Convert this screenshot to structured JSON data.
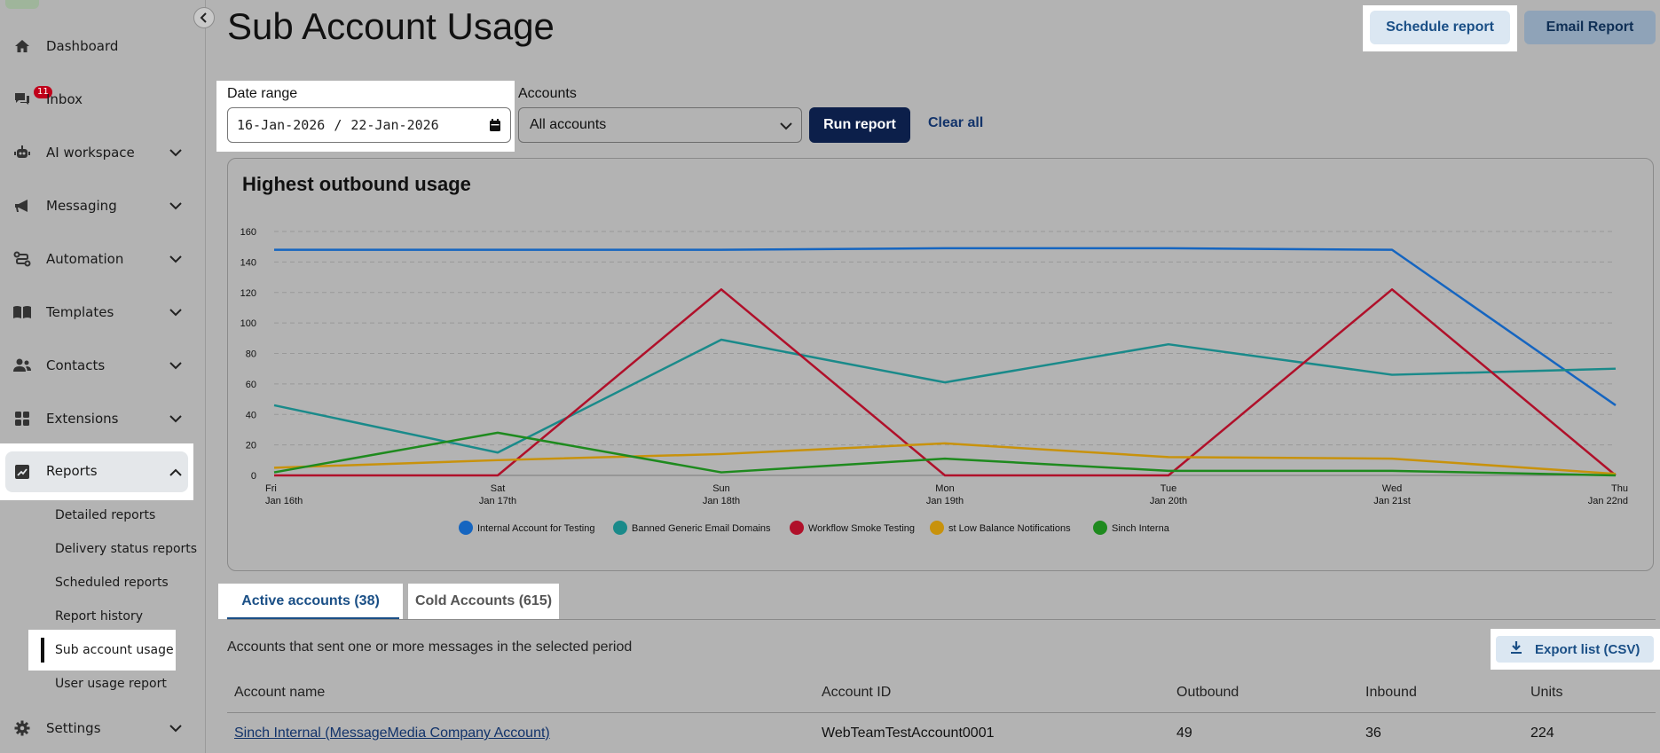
{
  "sidebar": {
    "items": [
      {
        "label": "Dashboard",
        "icon": "home-icon",
        "chevron": false
      },
      {
        "label": "Inbox",
        "icon": "chat-icon",
        "chevron": false,
        "badge": "11"
      },
      {
        "label": "AI workspace",
        "icon": "robot-icon",
        "chevron": true
      },
      {
        "label": "Messaging",
        "icon": "megaphone-icon",
        "chevron": true
      },
      {
        "label": "Automation",
        "icon": "flow-icon",
        "chevron": true
      },
      {
        "label": "Templates",
        "icon": "book-icon",
        "chevron": true
      },
      {
        "label": "Contacts",
        "icon": "people-icon",
        "chevron": true
      },
      {
        "label": "Extensions",
        "icon": "grid-icon",
        "chevron": true
      },
      {
        "label": "Reports",
        "icon": "chart-icon",
        "chevron": true,
        "expanded": true
      },
      {
        "label": "Settings",
        "icon": "gear-icon",
        "chevron": true
      }
    ],
    "report_subitems": [
      "Detailed reports",
      "Delivery status reports",
      "Scheduled reports",
      "Report history",
      "Sub account usage",
      "User usage report"
    ],
    "active_subitem": "Sub account usage"
  },
  "header": {
    "title": "Sub Account Usage",
    "schedule_label": "Schedule report",
    "email_label": "Email Report"
  },
  "filters": {
    "date_range_label": "Date range",
    "date_start": "16-Jan-2026",
    "date_separator": "/",
    "date_end": "22-Jan-2026",
    "accounts_label": "Accounts",
    "accounts_value": "All accounts",
    "run_label": "Run report",
    "clear_label": "Clear all"
  },
  "chart_data": {
    "type": "line",
    "title": "Highest outbound usage",
    "x_labels": [
      [
        "Fri",
        "Jan 16th"
      ],
      [
        "Sat",
        "Jan 17th"
      ],
      [
        "Sun",
        "Jan 18th"
      ],
      [
        "Mon",
        "Jan 19th"
      ],
      [
        "Tue",
        "Jan 20th"
      ],
      [
        "Wed",
        "Jan 21st"
      ],
      [
        "Thu",
        "Jan 22nd"
      ]
    ],
    "ylim": [
      0,
      160
    ],
    "yticks": [
      0,
      20,
      40,
      60,
      80,
      100,
      120,
      140,
      160
    ],
    "grid": true,
    "legend_position": "bottom",
    "series": [
      {
        "name": "Internal Account for Testing",
        "color": "#1565c0",
        "values": [
          148,
          148,
          148,
          149,
          149,
          148,
          46
        ]
      },
      {
        "name": "Banned Generic Email Domains",
        "color": "#1a8a8a",
        "values": [
          46,
          15,
          89,
          61,
          86,
          66,
          70
        ]
      },
      {
        "name": "Workflow Smoke Testing",
        "color": "#b0102a",
        "values": [
          0,
          0,
          122,
          0,
          0,
          122,
          0
        ]
      },
      {
        "name": "st Low Balance Notifications",
        "color": "#c8920c",
        "values": [
          5,
          10,
          14,
          21,
          12,
          11,
          1
        ]
      },
      {
        "name": "Sinch Interna",
        "color": "#1e8a1e",
        "values": [
          2,
          28,
          2,
          11,
          3,
          3,
          0
        ]
      }
    ]
  },
  "tabs": {
    "active_label": "Active accounts (38)",
    "inactive_label": "Cold Accounts (615)"
  },
  "list": {
    "subtitle": "Accounts that sent one or more messages in the selected period",
    "export_label": "Export list (CSV)",
    "columns": [
      "Account name",
      "Account ID",
      "Outbound",
      "Inbound",
      "Units"
    ],
    "rows": [
      [
        "Sinch Internal (MessageMedia Company Account)",
        "WebTeamTestAccount0001",
        "49",
        "36",
        "224"
      ]
    ]
  }
}
